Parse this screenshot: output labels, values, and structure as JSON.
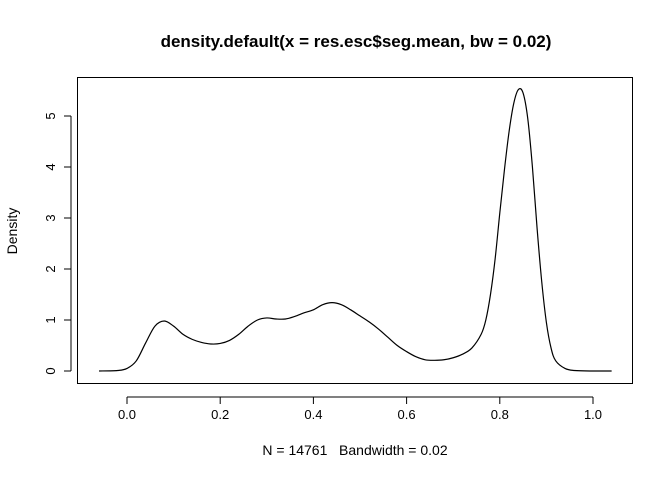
{
  "chart_data": {
    "type": "line",
    "title": "density.default(x = res.esc$seg.mean, bw = 0.02)",
    "xlabel": "N = 14761   Bandwidth = 0.02",
    "ylabel": "Density",
    "xlim": [
      -0.06,
      1.04
    ],
    "ylim": [
      0,
      5.5
    ],
    "x_ticks": [
      0.0,
      0.2,
      0.4,
      0.6,
      0.8,
      1.0
    ],
    "x_tick_labels": [
      "0.0",
      "0.2",
      "0.4",
      "0.6",
      "0.8",
      "1.0"
    ],
    "y_ticks": [
      0,
      1,
      2,
      3,
      4,
      5
    ],
    "y_tick_labels": [
      "0",
      "1",
      "2",
      "3",
      "4",
      "5"
    ],
    "grid": false,
    "legend": "none",
    "series": [
      {
        "x": [
          -0.06,
          -0.02,
          0.0,
          0.02,
          0.04,
          0.06,
          0.08,
          0.1,
          0.12,
          0.14,
          0.16,
          0.18,
          0.2,
          0.22,
          0.24,
          0.26,
          0.28,
          0.3,
          0.32,
          0.34,
          0.36,
          0.38,
          0.4,
          0.42,
          0.44,
          0.46,
          0.48,
          0.5,
          0.52,
          0.54,
          0.56,
          0.58,
          0.6,
          0.62,
          0.64,
          0.66,
          0.68,
          0.7,
          0.72,
          0.74,
          0.76,
          0.77,
          0.78,
          0.79,
          0.8,
          0.81,
          0.82,
          0.83,
          0.84,
          0.85,
          0.86,
          0.87,
          0.88,
          0.89,
          0.9,
          0.91,
          0.92,
          0.94,
          0.96,
          1.0,
          1.04
        ],
        "y": [
          0.0,
          0.01,
          0.05,
          0.2,
          0.55,
          0.88,
          0.98,
          0.88,
          0.72,
          0.62,
          0.56,
          0.53,
          0.54,
          0.6,
          0.72,
          0.88,
          1.0,
          1.04,
          1.02,
          1.02,
          1.07,
          1.14,
          1.2,
          1.3,
          1.34,
          1.3,
          1.2,
          1.08,
          0.96,
          0.82,
          0.66,
          0.5,
          0.38,
          0.28,
          0.22,
          0.21,
          0.22,
          0.26,
          0.33,
          0.45,
          0.72,
          1.0,
          1.5,
          2.2,
          3.1,
          3.95,
          4.7,
          5.25,
          5.52,
          5.45,
          4.95,
          4.0,
          2.8,
          1.75,
          0.95,
          0.45,
          0.2,
          0.05,
          0.01,
          0.0,
          0.0
        ]
      }
    ]
  }
}
